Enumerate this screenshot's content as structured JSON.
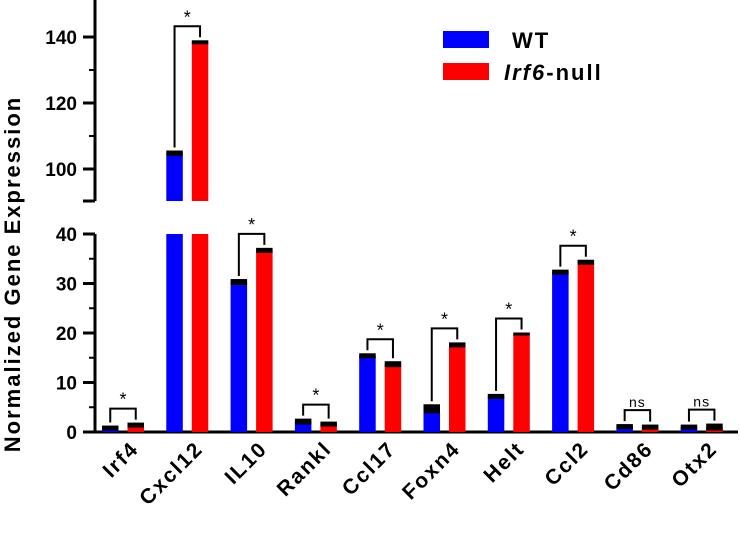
{
  "chart_data": {
    "type": "bar",
    "ylabel": "Normalized Gene Expression",
    "xlabel": "",
    "y_axis_break": {
      "lower_range": [
        0,
        40
      ],
      "upper_range": [
        90,
        150
      ]
    },
    "categories": [
      "Irf4",
      "Cxcl12",
      "IL10",
      "Rankl",
      "Ccl17",
      "Foxn4",
      "Helt",
      "Ccl2",
      "Cd86",
      "Otx2"
    ],
    "series": [
      {
        "name": "WT",
        "color": "#0000ff",
        "values": [
          0.8,
          104.8,
          30.3,
          2.1,
          15.4,
          4.7,
          7.2,
          32.3,
          1.1,
          1.0
        ],
        "errors": [
          0.3,
          0.5,
          0.4,
          0.4,
          0.3,
          0.7,
          0.3,
          0.3,
          0.3,
          0.3
        ]
      },
      {
        "name": "Irf6-null",
        "name_italic": "Irf6",
        "name_rest": "-null",
        "color": "#ff0000",
        "values": [
          1.4,
          138.4,
          36.7,
          1.6,
          13.7,
          17.6,
          19.8,
          34.3,
          1.0,
          1.0
        ],
        "errors": [
          0.3,
          0.3,
          0.3,
          0.3,
          0.4,
          0.3,
          0.1,
          0.3,
          0.3,
          0.5
        ]
      }
    ],
    "significance": [
      "*",
      "*",
      "*",
      "*",
      "*",
      "*",
      "*",
      "*",
      "ns",
      "ns"
    ],
    "lower_ticks": [
      "0",
      "10",
      "20",
      "30",
      "40"
    ],
    "upper_ticks": [
      "100",
      "120",
      "140"
    ],
    "legend_position": "top-right"
  }
}
